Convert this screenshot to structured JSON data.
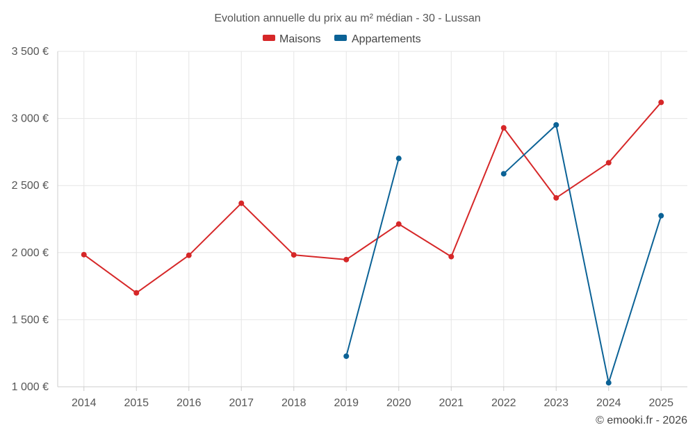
{
  "chart_data": {
    "type": "line",
    "title": "Evolution annuelle du prix au m² médian - 30 - Lussan",
    "categories": [
      "2014",
      "2015",
      "2016",
      "2017",
      "2018",
      "2019",
      "2020",
      "2021",
      "2022",
      "2023",
      "2024",
      "2025"
    ],
    "ylim": [
      1000,
      3500
    ],
    "yticks": [
      1000,
      1500,
      2000,
      2500,
      3000,
      3500
    ],
    "ytick_labels": [
      "1 000 €",
      "1 500 €",
      "2 000 €",
      "2 500 €",
      "3 000 €",
      "3 500 €"
    ],
    "grid": true,
    "legend_position": "top-center",
    "series": [
      {
        "name": "Maisons",
        "color": "#d62728",
        "values": [
          1985,
          1700,
          1980,
          2368,
          1983,
          1948,
          2213,
          1970,
          2930,
          2408,
          2670,
          3120
        ]
      },
      {
        "name": "Appartements",
        "color": "#0b6296",
        "values": [
          null,
          null,
          null,
          null,
          null,
          1228,
          2702,
          null,
          2588,
          2952,
          1030,
          2275
        ]
      }
    ]
  },
  "credit": "© emooki.fr - 2026"
}
